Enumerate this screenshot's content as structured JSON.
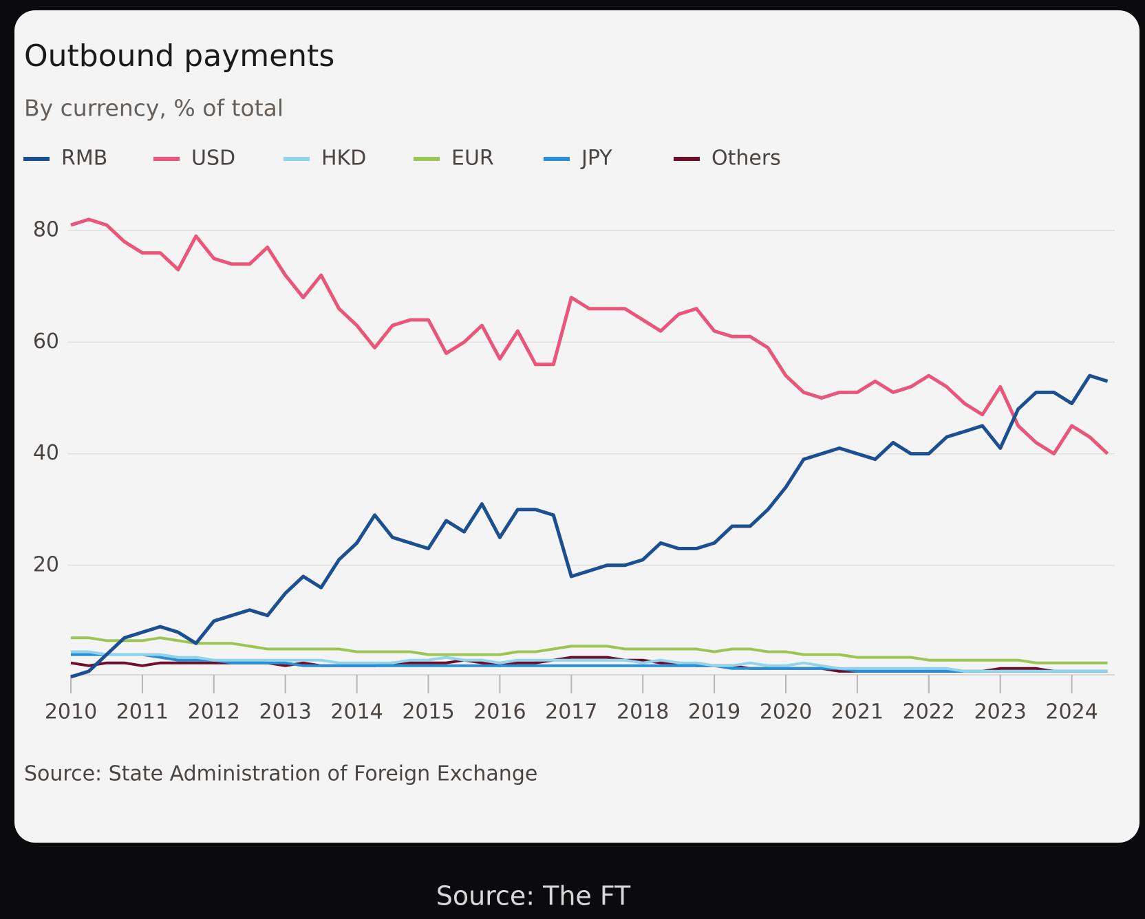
{
  "chart_data": {
    "type": "line",
    "title": "Outbound payments",
    "subtitle": "By currency, % of total",
    "source": "Source: State Administration of Foreign Exchange",
    "caption": "Source: The FT",
    "x": [
      2010,
      2010.25,
      2010.5,
      2010.75,
      2011,
      2011.25,
      2011.5,
      2011.75,
      2012,
      2012.25,
      2012.5,
      2012.75,
      2013,
      2013.25,
      2013.5,
      2013.75,
      2014,
      2014.25,
      2014.5,
      2014.75,
      2015,
      2015.25,
      2015.5,
      2015.75,
      2016,
      2016.25,
      2016.5,
      2016.75,
      2017,
      2017.25,
      2017.5,
      2017.75,
      2018,
      2018.25,
      2018.5,
      2018.75,
      2019,
      2019.25,
      2019.5,
      2019.75,
      2020,
      2020.25,
      2020.5,
      2020.75,
      2021,
      2021.25,
      2021.5,
      2021.75,
      2022,
      2022.25,
      2022.5,
      2022.75,
      2023,
      2023.25,
      2023.5,
      2023.75,
      2024,
      2024.25,
      2024.5
    ],
    "series": [
      {
        "name": "RMB",
        "color": "#1b4f8f",
        "values": [
          0,
          1,
          4,
          7,
          8,
          9,
          8,
          6,
          10,
          11,
          12,
          11,
          15,
          18,
          16,
          21,
          24,
          29,
          25,
          24,
          23,
          28,
          26,
          31,
          25,
          30,
          30,
          29,
          18,
          19,
          20,
          20,
          21,
          24,
          23,
          23,
          24,
          27,
          27,
          30,
          34,
          39,
          40,
          41,
          40,
          39,
          42,
          40,
          40,
          43,
          44,
          45,
          41,
          48,
          51,
          51,
          49,
          54,
          53
        ]
      },
      {
        "name": "USD",
        "color": "#e8567c",
        "values": [
          81,
          82,
          81,
          78,
          76,
          76,
          73,
          79,
          75,
          74,
          74,
          77,
          72,
          68,
          72,
          66,
          63,
          59,
          63,
          64,
          64,
          58,
          60,
          63,
          57,
          62,
          56,
          56,
          68,
          66,
          66,
          66,
          64,
          62,
          65,
          66,
          62,
          61,
          61,
          59,
          54,
          51,
          50,
          51,
          51,
          53,
          51,
          52,
          54,
          52,
          49,
          47,
          52,
          45,
          42,
          40,
          45,
          43,
          40
        ]
      },
      {
        "name": "HKD",
        "color": "#8fd3ec",
        "values": [
          4.5,
          4.5,
          4,
          4,
          4,
          4,
          3.5,
          3.5,
          3,
          3,
          3,
          3,
          3,
          3,
          3,
          2.5,
          2.5,
          2.5,
          2.5,
          3,
          3,
          3.5,
          3,
          3,
          2.5,
          3,
          3,
          3,
          3,
          3,
          3,
          3,
          2.5,
          3,
          2.5,
          2.5,
          2,
          2,
          2.5,
          2,
          2,
          2.5,
          2,
          1.5,
          1.5,
          1.5,
          1.5,
          1.5,
          1.5,
          1.5,
          1,
          1,
          1,
          1,
          1,
          1,
          1,
          1,
          1
        ]
      },
      {
        "name": "EUR",
        "color": "#9bc655",
        "values": [
          7,
          7,
          6.5,
          6.5,
          6.5,
          7,
          6.5,
          6,
          6,
          6,
          5.5,
          5,
          5,
          5,
          5,
          5,
          4.5,
          4.5,
          4.5,
          4.5,
          4,
          4,
          4,
          4,
          4,
          4.5,
          4.5,
          5,
          5.5,
          5.5,
          5.5,
          5,
          5,
          5,
          5,
          5,
          4.5,
          5,
          5,
          4.5,
          4.5,
          4,
          4,
          4,
          3.5,
          3.5,
          3.5,
          3.5,
          3,
          3,
          3,
          3,
          3,
          3,
          2.5,
          2.5,
          2.5,
          2.5,
          2.5
        ]
      },
      {
        "name": "JPY",
        "color": "#2b8ed2",
        "values": [
          4,
          4,
          4,
          4,
          4,
          3.5,
          3,
          3,
          3,
          2.5,
          2.5,
          2.5,
          2.5,
          2,
          2,
          2,
          2,
          2,
          2,
          2,
          2,
          2,
          2,
          2,
          2,
          2,
          2,
          2,
          2,
          2,
          2,
          2,
          2,
          2,
          2,
          2,
          2,
          1.5,
          1.5,
          1.5,
          1.5,
          1.5,
          1.5,
          1.5,
          1,
          1,
          1,
          1,
          1,
          1,
          1,
          1,
          1,
          1,
          1,
          1,
          1,
          1,
          1
        ]
      },
      {
        "name": "Others",
        "color": "#6b0f2b",
        "values": [
          2.5,
          2,
          2.5,
          2.5,
          2,
          2.5,
          2.5,
          2.5,
          2.5,
          2.5,
          2.5,
          2.5,
          2,
          2.5,
          2,
          2,
          2,
          2,
          2.5,
          2.5,
          2.5,
          2.5,
          3,
          2.5,
          2,
          2.5,
          2.5,
          3,
          3.5,
          3.5,
          3.5,
          3,
          3,
          2.5,
          2.5,
          2,
          2,
          2,
          1.5,
          1.5,
          1.5,
          1.5,
          1.5,
          1,
          1,
          1,
          1,
          1,
          1,
          1,
          1,
          1,
          1.5,
          1.5,
          1.5,
          1,
          1,
          1,
          1
        ]
      }
    ],
    "xlim": [
      2010,
      2024.6
    ],
    "xticks": [
      2010,
      2011,
      2012,
      2013,
      2014,
      2015,
      2016,
      2017,
      2018,
      2019,
      2020,
      2021,
      2022,
      2023,
      2024
    ],
    "ylim": [
      0,
      84
    ],
    "yticks": [
      20,
      40,
      60,
      80
    ],
    "grid": true
  }
}
